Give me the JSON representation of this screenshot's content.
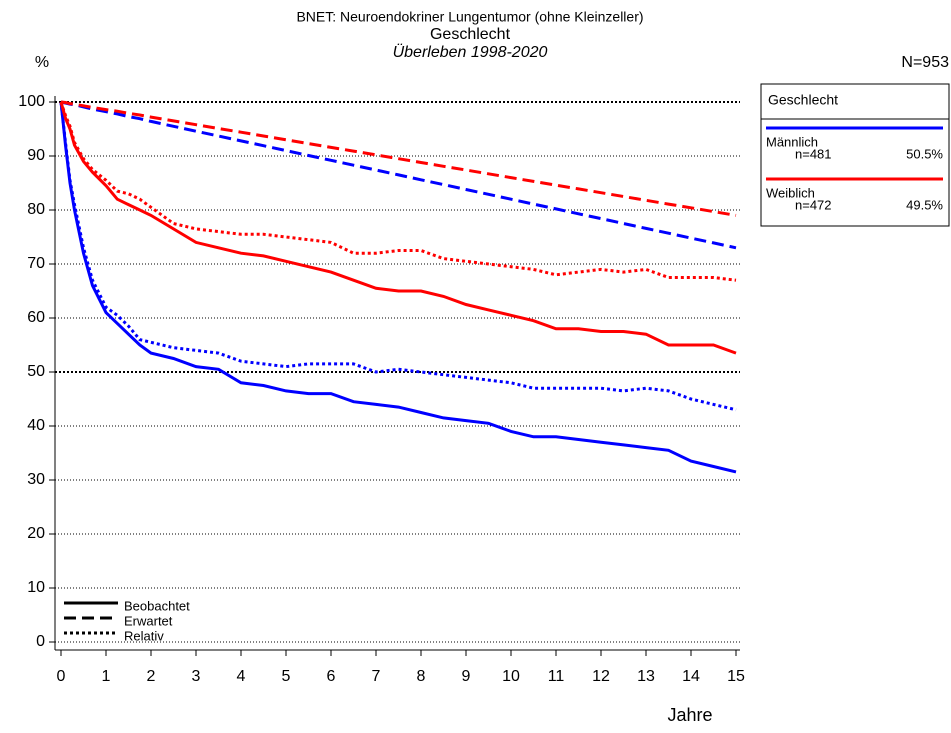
{
  "chart_data": {
    "type": "line",
    "title": "BNET: Neuroendokriner Lungentumor (ohne Kleinzeller)",
    "subtitle": "Geschlecht",
    "caption": "Überleben 1998-2020",
    "y_label": "%",
    "x_label": "Jahre",
    "total": {
      "value": 953,
      "label": "N=953"
    },
    "legend_title": "Geschlecht",
    "grid": true,
    "xlim": [
      0,
      15
    ],
    "xticks": [
      0,
      1,
      2,
      3,
      4,
      5,
      6,
      7,
      8,
      9,
      10,
      11,
      12,
      13,
      14,
      15
    ],
    "ylim": [
      0,
      100
    ],
    "yticks": [
      0,
      10,
      20,
      30,
      40,
      50,
      60,
      70,
      80,
      90,
      100
    ],
    "groups": [
      {
        "name": "Männlich",
        "color": "#0000ff",
        "n": {
          "value": 481,
          "label": "n=481"
        },
        "share": {
          "value": 50.5,
          "label": "50.5%"
        }
      },
      {
        "name": "Weiblich",
        "color": "#ff0000",
        "n": {
          "value": 472,
          "label": "n=472"
        },
        "share": {
          "value": 49.5,
          "label": "49.5%"
        }
      }
    ],
    "line_styles": [
      {
        "label": "Beobachtet",
        "dash": "solid"
      },
      {
        "label": "Erwartet",
        "dash": "dashed"
      },
      {
        "label": "Relativ",
        "dash": "dotted"
      }
    ],
    "x": [
      0,
      0.1,
      0.2,
      0.3,
      0.5,
      0.7,
      1,
      1.25,
      1.5,
      1.75,
      2,
      2.5,
      3,
      3.5,
      4,
      4.5,
      5,
      5.5,
      6,
      6.5,
      7,
      7.5,
      8,
      8.5,
      9,
      9.5,
      10,
      10.5,
      11,
      11.5,
      12,
      12.5,
      13,
      13.5,
      14,
      14.5,
      15
    ],
    "series": [
      {
        "group": 0,
        "style": 0,
        "values": [
          100,
          92,
          85,
          80,
          72,
          66,
          61,
          59,
          57,
          55,
          53.5,
          52.5,
          51,
          50.5,
          48,
          47.5,
          46.5,
          46,
          46,
          44.5,
          44,
          43.5,
          42.5,
          41.5,
          41,
          40.5,
          39,
          38,
          38,
          37.5,
          37,
          36.5,
          36,
          35.5,
          33.5,
          32.5,
          31.5
        ]
      },
      {
        "group": 0,
        "style": 1,
        "values": [
          100,
          99.8,
          99.6,
          99.5,
          99.1,
          98.7,
          98.2,
          97.8,
          97.3,
          96.9,
          96.4,
          95.5,
          94.6,
          93.7,
          92.8,
          91.9,
          91,
          90.1,
          89.2,
          88.3,
          87.4,
          86.5,
          85.6,
          84.7,
          83.8,
          82.9,
          82,
          81.1,
          80.2,
          79.3,
          78.4,
          77.5,
          76.6,
          75.7,
          74.8,
          73.9,
          73
        ]
      },
      {
        "group": 0,
        "style": 2,
        "values": [
          100,
          92.5,
          85.5,
          81,
          73,
          67,
          62,
          60.5,
          58.5,
          56,
          55.5,
          54.5,
          54,
          53.5,
          52,
          51.5,
          51,
          51.5,
          51.5,
          51.5,
          50,
          50.5,
          50,
          49.5,
          49,
          48.5,
          48,
          47,
          47,
          47,
          47,
          46.5,
          47,
          46.5,
          45,
          44,
          43
        ]
      },
      {
        "group": 1,
        "style": 0,
        "values": [
          100,
          97,
          95,
          92,
          89,
          87,
          84.5,
          82,
          81,
          80,
          79,
          76.5,
          74,
          73,
          72,
          71.5,
          70.5,
          69.5,
          68.5,
          67,
          65.5,
          65,
          65,
          64,
          62.5,
          61.5,
          60.5,
          59.5,
          58,
          58,
          57.5,
          57.5,
          57,
          55,
          55,
          55,
          53.5
        ]
      },
      {
        "group": 1,
        "style": 1,
        "values": [
          100,
          99.9,
          99.7,
          99.6,
          99.3,
          99,
          98.6,
          98.3,
          97.9,
          97.6,
          97.2,
          96.5,
          95.8,
          95.1,
          94.4,
          93.7,
          93,
          92.3,
          91.6,
          90.9,
          90.2,
          89.5,
          88.8,
          88.1,
          87.4,
          86.7,
          86,
          85.3,
          84.6,
          83.9,
          83.2,
          82.5,
          81.8,
          81.1,
          80.4,
          79.7,
          79
        ]
      },
      {
        "group": 1,
        "style": 2,
        "values": [
          100,
          97.5,
          95.5,
          92.5,
          89.5,
          87.5,
          85.5,
          83.5,
          83,
          82,
          80.5,
          77.5,
          76.5,
          76,
          75.5,
          75.5,
          75,
          74.5,
          74,
          72,
          72,
          72.5,
          72.5,
          71,
          70.5,
          70,
          69.5,
          69,
          68,
          68.5,
          69,
          68.5,
          69,
          67.5,
          67.5,
          67.5,
          67
        ]
      }
    ]
  }
}
